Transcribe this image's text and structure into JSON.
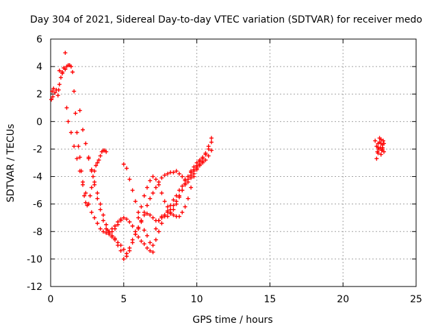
{
  "chart_data": {
    "type": "scatter",
    "title": "Day 304 of 2021, Sidereal Day-to-day VTEC variation (SDTVAR) for receiver medo",
    "xlabel": "GPS time / hours",
    "ylabel": "SDTVAR / TECUs",
    "xlim": [
      0,
      25
    ],
    "ylim": [
      -12,
      6
    ],
    "xticks": [
      "0",
      "5",
      "10",
      "15",
      "20",
      "25"
    ],
    "yticks": [
      "6",
      "4",
      "2",
      "0",
      "-2",
      "-4",
      "-6",
      "-8",
      "-10",
      "-12"
    ],
    "grid": true,
    "marker": "+",
    "color": "#ff0000",
    "series": [
      {
        "name": "",
        "x": [
          0.05,
          0.1,
          0.15,
          0.2,
          0.3,
          0.4,
          0.5,
          0.55,
          0.6,
          0.7,
          0.8,
          0.9,
          1.0,
          1.1,
          1.2,
          1.3,
          1.4,
          1.5,
          1.6,
          1.7,
          1.8,
          1.9,
          2.0,
          2.1,
          2.2,
          2.3,
          2.4,
          2.5,
          2.6,
          2.7,
          2.8,
          2.9,
          3.0,
          3.1,
          3.2,
          3.3,
          3.4,
          3.5,
          3.6,
          3.7,
          3.8,
          3.9,
          4.0,
          4.2,
          4.4,
          4.6,
          4.8,
          5.0,
          5.2,
          5.4,
          5.6,
          5.8,
          6.0,
          6.2,
          6.4,
          6.6,
          6.8,
          7.0,
          7.2,
          7.4,
          7.6,
          7.8,
          8.0,
          8.2,
          8.4,
          8.6,
          8.8,
          9.0,
          9.2,
          9.4,
          9.6,
          9.8,
          10.0,
          10.2,
          10.4,
          10.6,
          10.8,
          11.0
        ],
        "y": [
          1.6,
          2.2,
          1.8,
          2.4,
          2.1,
          2.3,
          1.9,
          2.3,
          2.7,
          3.2,
          3.6,
          3.9,
          3.8,
          4.0,
          4.1,
          4.1,
          4.0,
          3.6,
          2.2,
          0.6,
          -0.8,
          -1.8,
          -2.6,
          -3.6,
          -4.6,
          -5.4,
          -5.9,
          -6.1,
          -6.0,
          -5.4,
          -4.8,
          -4.0,
          -3.6,
          -3.2,
          -3.0,
          -2.8,
          -2.5,
          -2.2,
          -2.1,
          -2.1,
          -2.2,
          -7.9,
          -8.1,
          -8.3,
          -8.5,
          -8.8,
          -9.0,
          -9.3,
          -9.6,
          -9.4,
          -8.8,
          -8.2,
          -7.7,
          -7.2,
          -6.8,
          -6.7,
          -6.8,
          -7.0,
          -7.2,
          -7.2,
          -7.0,
          -6.8,
          -6.5,
          -6.1,
          -5.7,
          -5.4,
          -5.0,
          -4.7,
          -4.3,
          -4.0,
          -3.7,
          -3.5,
          -3.2,
          -2.9,
          -2.7,
          -2.4,
          -2.0,
          -1.5
        ]
      },
      {
        "name": "",
        "x": [
          0.6,
          0.8,
          1.0,
          1.1,
          1.2,
          1.4,
          1.6,
          1.8,
          2.0,
          2.2,
          2.4,
          2.6,
          2.8,
          3.0,
          3.2,
          3.4,
          3.6,
          3.8,
          4.0,
          4.2,
          4.4,
          4.6,
          4.8,
          5.0,
          5.2,
          5.4,
          5.6,
          5.8,
          6.0,
          6.2,
          6.4,
          6.6,
          6.8,
          7.0,
          7.2,
          7.4,
          7.6,
          7.8,
          8.0,
          8.2,
          8.4,
          8.6,
          8.8,
          9.0,
          9.2,
          9.4,
          9.6,
          9.8,
          10.0,
          10.2,
          10.4
        ],
        "y": [
          3.7,
          3.5,
          5.0,
          1.0,
          0.0,
          -0.8,
          -1.8,
          -2.7,
          -3.6,
          -4.4,
          -5.2,
          -6.0,
          -6.6,
          -7.0,
          -7.4,
          -7.8,
          -8.0,
          -8.1,
          -8.0,
          -7.8,
          -7.6,
          -7.3,
          -7.1,
          -7.0,
          -7.1,
          -7.3,
          -7.6,
          -8.0,
          -8.4,
          -8.7,
          -8.9,
          -9.2,
          -9.4,
          -9.5,
          -7.8,
          -7.2,
          -6.9,
          -6.8,
          -6.9,
          -6.7,
          -6.4,
          -6.0,
          -5.5,
          -5.0,
          -4.6,
          -4.2,
          -3.9,
          -3.6,
          -3.3,
          -3.1,
          -2.9
        ]
      },
      {
        "name": "",
        "x": [
          2.0,
          2.2,
          2.4,
          2.6,
          2.8,
          3.0,
          3.2,
          3.4,
          3.6,
          3.8,
          4.0,
          4.2,
          4.4,
          4.6,
          4.8,
          5.0,
          5.2,
          5.4,
          5.6,
          5.8,
          6.0,
          6.2,
          6.4,
          6.6,
          6.8,
          7.0,
          7.2,
          7.4,
          7.6,
          7.8,
          8.0,
          8.2,
          8.4,
          8.6,
          8.8,
          9.0,
          9.2,
          9.4,
          9.6,
          9.8,
          10.0,
          10.2,
          10.4,
          10.6,
          10.8,
          11.0
        ],
        "y": [
          0.8,
          -0.6,
          -1.6,
          -2.6,
          -3.6,
          -4.6,
          -5.6,
          -6.4,
          -7.2,
          -7.8,
          -8.2,
          -8.4,
          -8.6,
          -9.0,
          -9.4,
          -10.0,
          -9.8,
          -9.2,
          -8.6,
          -8.2,
          -7.8,
          -7.2,
          -6.6,
          -6.1,
          -5.6,
          -5.2,
          -4.8,
          -4.4,
          -4.1,
          -3.9,
          -3.8,
          -3.7,
          -3.7,
          -3.6,
          -3.8,
          -4.0,
          -4.2,
          -4.4,
          -4.1,
          -3.8,
          -3.5,
          -3.2,
          -3.0,
          -2.8,
          -2.5,
          -2.1
        ]
      },
      {
        "name": "",
        "x": [
          2.6,
          2.8,
          3.0,
          3.2,
          3.4,
          3.6,
          3.8,
          4.0,
          4.2,
          4.4,
          4.6,
          4.8,
          5.0,
          5.2,
          5.4,
          5.6,
          5.8,
          6.0,
          6.2,
          6.4,
          6.6,
          6.8,
          7.0,
          7.2,
          7.4,
          7.6,
          7.8,
          8.0,
          8.2,
          8.4,
          8.6,
          8.8,
          9.0,
          9.2,
          9.4,
          9.6,
          9.8,
          10.0,
          10.2,
          10.4,
          10.6,
          10.8,
          11.0
        ],
        "y": [
          -2.7,
          -3.5,
          -4.4,
          -5.2,
          -6.0,
          -6.8,
          -7.5,
          -8.0,
          -8.0,
          -7.8,
          -7.5,
          -7.2,
          -3.1,
          -3.4,
          -4.2,
          -5.0,
          -5.8,
          -6.6,
          -7.3,
          -7.9,
          -8.3,
          -8.8,
          -9.0,
          -8.6,
          -8.0,
          -7.4,
          -6.9,
          -6.6,
          -6.4,
          -6.1,
          -5.8,
          -5.4,
          -5.0,
          -4.5,
          -4.0,
          -3.6,
          -3.3,
          -3.0,
          -2.8,
          -2.6,
          -2.3,
          -1.8,
          -1.2
        ]
      },
      {
        "name": "",
        "x": [
          6.0,
          6.2,
          6.4,
          6.6,
          6.8,
          7.0,
          7.2,
          7.4,
          7.6,
          7.8,
          8.0,
          8.2,
          8.4,
          8.6,
          8.8,
          9.0,
          9.2,
          9.4,
          9.6,
          9.8,
          10.0
        ],
        "y": [
          -7.0,
          -6.2,
          -5.4,
          -4.8,
          -4.3,
          -4.0,
          -4.2,
          -4.6,
          -5.2,
          -5.8,
          -6.2,
          -6.6,
          -6.8,
          -6.9,
          -6.9,
          -6.6,
          -6.2,
          -5.6,
          -4.8,
          -4.0,
          -3.4
        ]
      },
      {
        "name": "",
        "x": [
          22.2,
          22.3,
          22.35,
          22.4,
          22.45,
          22.5,
          22.55,
          22.6,
          22.65,
          22.7,
          22.75,
          22.8,
          22.3,
          22.4,
          22.5,
          22.6,
          22.7,
          22.8,
          22.4,
          22.6,
          22.7
        ],
        "y": [
          -1.4,
          -1.8,
          -2.2,
          -1.6,
          -2.0,
          -1.5,
          -1.9,
          -1.3,
          -2.1,
          -1.7,
          -1.4,
          -1.6,
          -2.7,
          -2.3,
          -1.2,
          -2.4,
          -1.9,
          -2.2,
          -1.9,
          -1.6,
          -2.0
        ]
      }
    ]
  }
}
